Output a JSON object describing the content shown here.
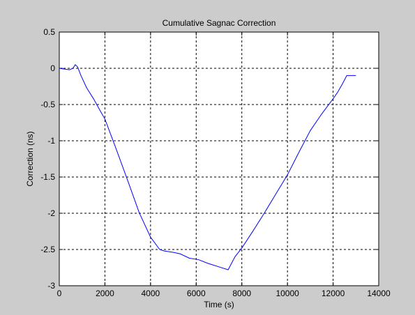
{
  "chart_data": {
    "type": "line",
    "title": "Cumulative Sagnac Correction",
    "xlabel": "Time (s)",
    "ylabel": "Correction (ns)",
    "xlim": [
      0,
      14000
    ],
    "ylim": [
      -3,
      0.5
    ],
    "xticks": [
      0,
      2000,
      4000,
      6000,
      8000,
      10000,
      12000,
      14000
    ],
    "xtick_labels": [
      "0",
      "2000",
      "4000",
      "6000",
      "8000",
      "10000",
      "12000",
      "14000"
    ],
    "yticks": [
      0.5,
      0,
      -0.5,
      -1,
      -1.5,
      -2,
      -2.5,
      -3
    ],
    "ytick_labels": [
      "0.5",
      "0",
      "-0.5",
      "-1",
      "-1.5",
      "-2",
      "-2.5",
      "-3"
    ],
    "grid": true,
    "colors": {
      "line": "#0000ff",
      "figure_bg": "#cccccc",
      "axes_bg": "#ffffff",
      "grid": "#000000"
    },
    "series": [
      {
        "x": [
          0,
          200,
          450,
          600,
          700,
          800,
          950,
          1200,
          1500,
          1800,
          2000,
          2500,
          3000,
          3500,
          4000,
          4400,
          4600,
          5000,
          5300,
          5700,
          6100,
          6500,
          7000,
          7400,
          7700,
          8000,
          8500,
          9000,
          9500,
          10000,
          10500,
          11000,
          11500,
          12000,
          12200,
          12400,
          12600,
          13000
        ],
        "y": [
          0,
          -0.01,
          -0.02,
          0.0,
          0.05,
          0.02,
          -0.1,
          -0.27,
          -0.42,
          -0.59,
          -0.7,
          -1.12,
          -1.55,
          -1.99,
          -2.33,
          -2.5,
          -2.52,
          -2.54,
          -2.56,
          -2.62,
          -2.64,
          -2.69,
          -2.74,
          -2.78,
          -2.6,
          -2.48,
          -2.24,
          -1.99,
          -1.73,
          -1.47,
          -1.16,
          -0.86,
          -0.63,
          -0.42,
          -0.33,
          -0.22,
          -0.1,
          -0.1
        ]
      }
    ]
  }
}
